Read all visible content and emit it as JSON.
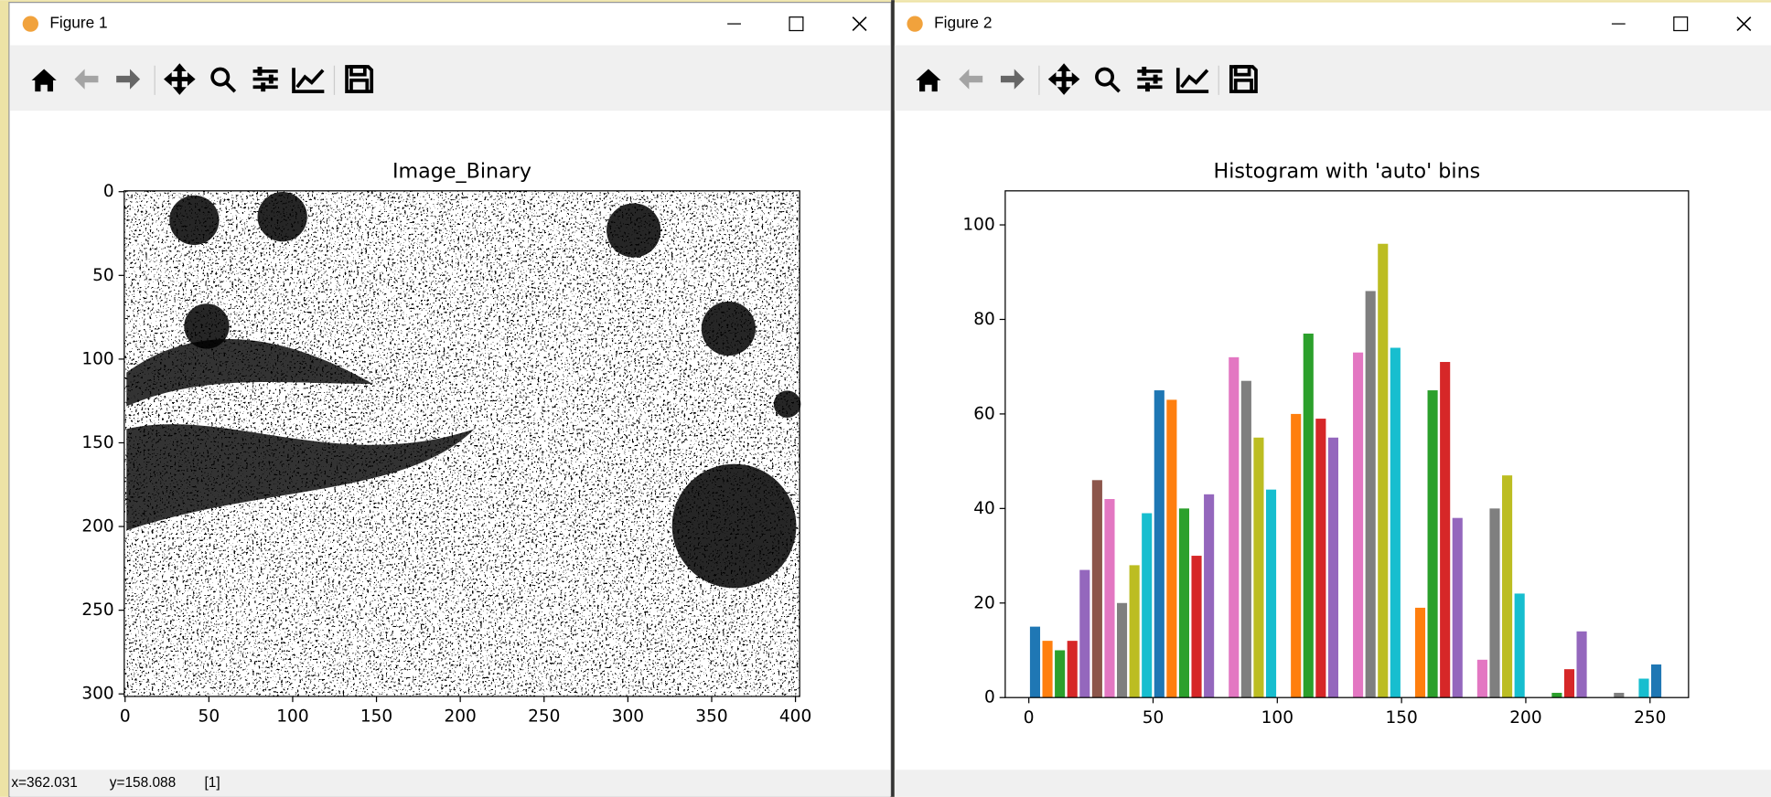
{
  "windows": [
    {
      "title": "Figure 1",
      "status": [
        "x=362.031",
        "y=158.088",
        "[1]"
      ]
    },
    {
      "title": "Figure 2"
    }
  ],
  "chart_data": [
    {
      "type": "image",
      "title": "Image_Binary",
      "xlim": [
        -0.5,
        402.5
      ],
      "ylim": [
        301.5,
        -0.5
      ],
      "xticks": [
        0,
        50,
        100,
        150,
        200,
        250,
        300,
        350,
        400
      ],
      "yticks": [
        0,
        50,
        100,
        150,
        200,
        250,
        300
      ]
    },
    {
      "type": "histogram",
      "title": "Histogram with 'auto' bins",
      "bins": [
        0,
        5,
        10,
        15,
        20,
        25,
        30,
        35,
        40,
        45,
        50,
        55,
        60,
        65,
        70,
        75,
        80,
        85,
        90,
        95,
        100,
        105,
        110,
        115,
        120,
        125,
        130,
        135,
        140,
        145,
        150,
        155,
        160,
        165,
        170,
        175,
        180,
        185,
        190,
        195,
        200,
        205,
        210,
        215,
        220,
        225,
        230,
        235,
        240,
        245,
        250,
        255
      ],
      "values": [
        15,
        12,
        10,
        12,
        27,
        46,
        42,
        20,
        28,
        39,
        65,
        63,
        40,
        30,
        43,
        0,
        72,
        67,
        55,
        44,
        0,
        60,
        77,
        59,
        55,
        0,
        73,
        86,
        96,
        74,
        0,
        19,
        65,
        71,
        38,
        0,
        8,
        40,
        47,
        22,
        0,
        0,
        1,
        6,
        14,
        0,
        0,
        1,
        0,
        4,
        7
      ],
      "colors": [
        "#1f77b4",
        "#ff7f0e",
        "#2ca02c",
        "#d62728",
        "#9467bd",
        "#8c564b",
        "#e377c2",
        "#7f7f7f",
        "#bcbd22",
        "#17becf"
      ],
      "xlim": [
        -9.5,
        265.5
      ],
      "ylim": [
        0,
        107.2
      ],
      "xticks": [
        0,
        50,
        100,
        150,
        200,
        250
      ],
      "yticks": [
        0,
        20,
        40,
        60,
        80,
        100
      ]
    }
  ]
}
